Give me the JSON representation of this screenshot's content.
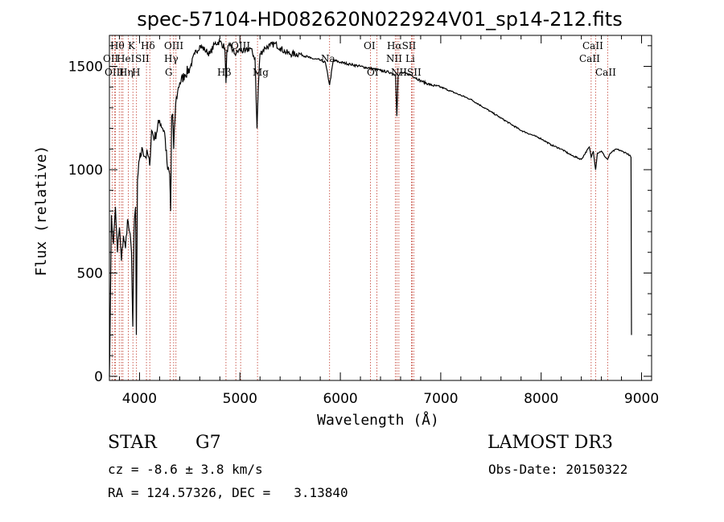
{
  "chart_data": {
    "type": "line",
    "title": "spec-57104-HD082620N022924V01_sp14-212.fits",
    "xlabel": "Wavelength (Å)",
    "ylabel": "Flux (relative)",
    "xlim": [
      3700,
      9100
    ],
    "ylim": [
      -20,
      1650
    ],
    "xticks": [
      4000,
      5000,
      6000,
      7000,
      8000,
      9000
    ],
    "yticks": [
      0,
      500,
      1000,
      1500
    ],
    "series": [
      {
        "name": "flux",
        "x": [
          3700,
          3710,
          3720,
          3740,
          3760,
          3780,
          3800,
          3820,
          3840,
          3860,
          3880,
          3900,
          3920,
          3933,
          3945,
          3960,
          3968,
          3980,
          4000,
          4030,
          4060,
          4080,
          4101,
          4120,
          4150,
          4200,
          4250,
          4280,
          4300,
          4310,
          4320,
          4330,
          4340,
          4360,
          4380,
          4400,
          4450,
          4500,
          4550,
          4600,
          4650,
          4700,
          4750,
          4800,
          4850,
          4861,
          4870,
          4900,
          4950,
          5000,
          5050,
          5100,
          5150,
          5170,
          5183,
          5200,
          5250,
          5300,
          5350,
          5400,
          5450,
          5500,
          5600,
          5700,
          5800,
          5850,
          5893,
          5930,
          6000,
          6100,
          6200,
          6300,
          6400,
          6500,
          6550,
          6563,
          6575,
          6600,
          6700,
          6800,
          6900,
          7000,
          7100,
          7200,
          7300,
          7400,
          7500,
          7600,
          7700,
          7800,
          7900,
          8000,
          8100,
          8200,
          8300,
          8400,
          8480,
          8498,
          8520,
          8542,
          8560,
          8600,
          8640,
          8662,
          8690,
          8750,
          8800,
          8850,
          8880,
          8895,
          8900
        ],
        "y": [
          0,
          350,
          780,
          640,
          820,
          600,
          720,
          560,
          680,
          620,
          760,
          700,
          600,
          240,
          700,
          820,
          200,
          950,
          1050,
          1100,
          1060,
          1080,
          1020,
          1190,
          1150,
          1240,
          1180,
          1000,
          980,
          800,
          1260,
          1270,
          1100,
          1320,
          1380,
          1420,
          1460,
          1490,
          1560,
          1600,
          1580,
          1560,
          1610,
          1620,
          1590,
          1420,
          1580,
          1600,
          1560,
          1580,
          1570,
          1590,
          1540,
          1200,
          1400,
          1560,
          1590,
          1600,
          1610,
          1590,
          1570,
          1560,
          1560,
          1540,
          1530,
          1520,
          1410,
          1530,
          1520,
          1510,
          1500,
          1490,
          1480,
          1470,
          1460,
          1260,
          1450,
          1470,
          1460,
          1430,
          1410,
          1400,
          1380,
          1360,
          1340,
          1310,
          1280,
          1250,
          1220,
          1190,
          1170,
          1150,
          1120,
          1100,
          1070,
          1050,
          1110,
          1060,
          1090,
          1000,
          1080,
          1090,
          1060,
          1050,
          1080,
          1100,
          1090,
          1080,
          1070,
          1060,
          200
        ]
      }
    ],
    "spectral_lines": [
      {
        "wave": 3727,
        "label": "OII"
      },
      {
        "wave": 3750,
        "label": "Hθ"
      },
      {
        "wave": 3760,
        "label": "OIII"
      },
      {
        "wave": 3798,
        "label": "Hη"
      },
      {
        "wave": 3820,
        "label": "HeI"
      },
      {
        "wave": 3835,
        "label": "Hη"
      },
      {
        "wave": 3889,
        "label": "HeI"
      },
      {
        "wave": 3934,
        "label": "K"
      },
      {
        "wave": 3970,
        "label": "H"
      },
      {
        "wave": 4069,
        "label": "SII"
      },
      {
        "wave": 4102,
        "label": "Hδ"
      },
      {
        "wave": 4304,
        "label": "G"
      },
      {
        "wave": 4340,
        "label": "Hγ"
      },
      {
        "wave": 4363,
        "label": "OIII"
      },
      {
        "wave": 4861,
        "label": "Hβ"
      },
      {
        "wave": 4959,
        "label": "OIII"
      },
      {
        "wave": 5007,
        "label": "OIII"
      },
      {
        "wave": 5175,
        "label": "Mg"
      },
      {
        "wave": 5893,
        "label": "Na"
      },
      {
        "wave": 6300,
        "label": "OI"
      },
      {
        "wave": 6364,
        "label": "OI"
      },
      {
        "wave": 6548,
        "label": "NII"
      },
      {
        "wave": 6563,
        "label": "Hα"
      },
      {
        "wave": 6583,
        "label": "NII"
      },
      {
        "wave": 6708,
        "label": "Li"
      },
      {
        "wave": 6716,
        "label": "SII"
      },
      {
        "wave": 6731,
        "label": "SII"
      },
      {
        "wave": 8498,
        "label": "CaII"
      },
      {
        "wave": 8542,
        "label": "CaII"
      },
      {
        "wave": 8662,
        "label": "CaII"
      }
    ]
  },
  "line_labels": [
    {
      "id": "a",
      "text": "Hθ"
    },
    {
      "id": "b",
      "text": "K"
    },
    {
      "id": "c",
      "text": "Hδ"
    },
    {
      "id": "d",
      "text": "OII"
    },
    {
      "id": "e",
      "text": "HeI"
    },
    {
      "id": "f",
      "text": "SII"
    },
    {
      "id": "g",
      "text": "OIII"
    },
    {
      "id": "h",
      "text": "Hη"
    },
    {
      "id": "i",
      "text": "H"
    },
    {
      "id": "j",
      "text": "OIII"
    },
    {
      "id": "k",
      "text": "Hγ"
    },
    {
      "id": "l",
      "text": "G"
    },
    {
      "id": "m",
      "text": "OIII"
    },
    {
      "id": "n",
      "text": "Hβ"
    },
    {
      "id": "o",
      "text": "Mg"
    },
    {
      "id": "p",
      "text": "Na"
    },
    {
      "id": "q",
      "text": "OI"
    },
    {
      "id": "r",
      "text": "OI"
    },
    {
      "id": "s",
      "text": "HαSII"
    },
    {
      "id": "t",
      "text": "NII"
    },
    {
      "id": "u",
      "text": "Li"
    },
    {
      "id": "v",
      "text": "NIISII"
    },
    {
      "id": "w",
      "text": "CaII"
    },
    {
      "id": "x",
      "text": "CaII"
    },
    {
      "id": "y",
      "text": "CaII"
    }
  ],
  "info": {
    "class_label": "STAR",
    "subclass": "G7",
    "survey": "LAMOST DR3",
    "cz": "cz = -8.6 ± 3.8 km/s",
    "obs_date": "Obs-Date: 20150322",
    "coords": "RA = 124.57326, DEC =   3.13840"
  },
  "colors": {
    "line_marker": "#c0392b",
    "spectrum": "#000000"
  }
}
